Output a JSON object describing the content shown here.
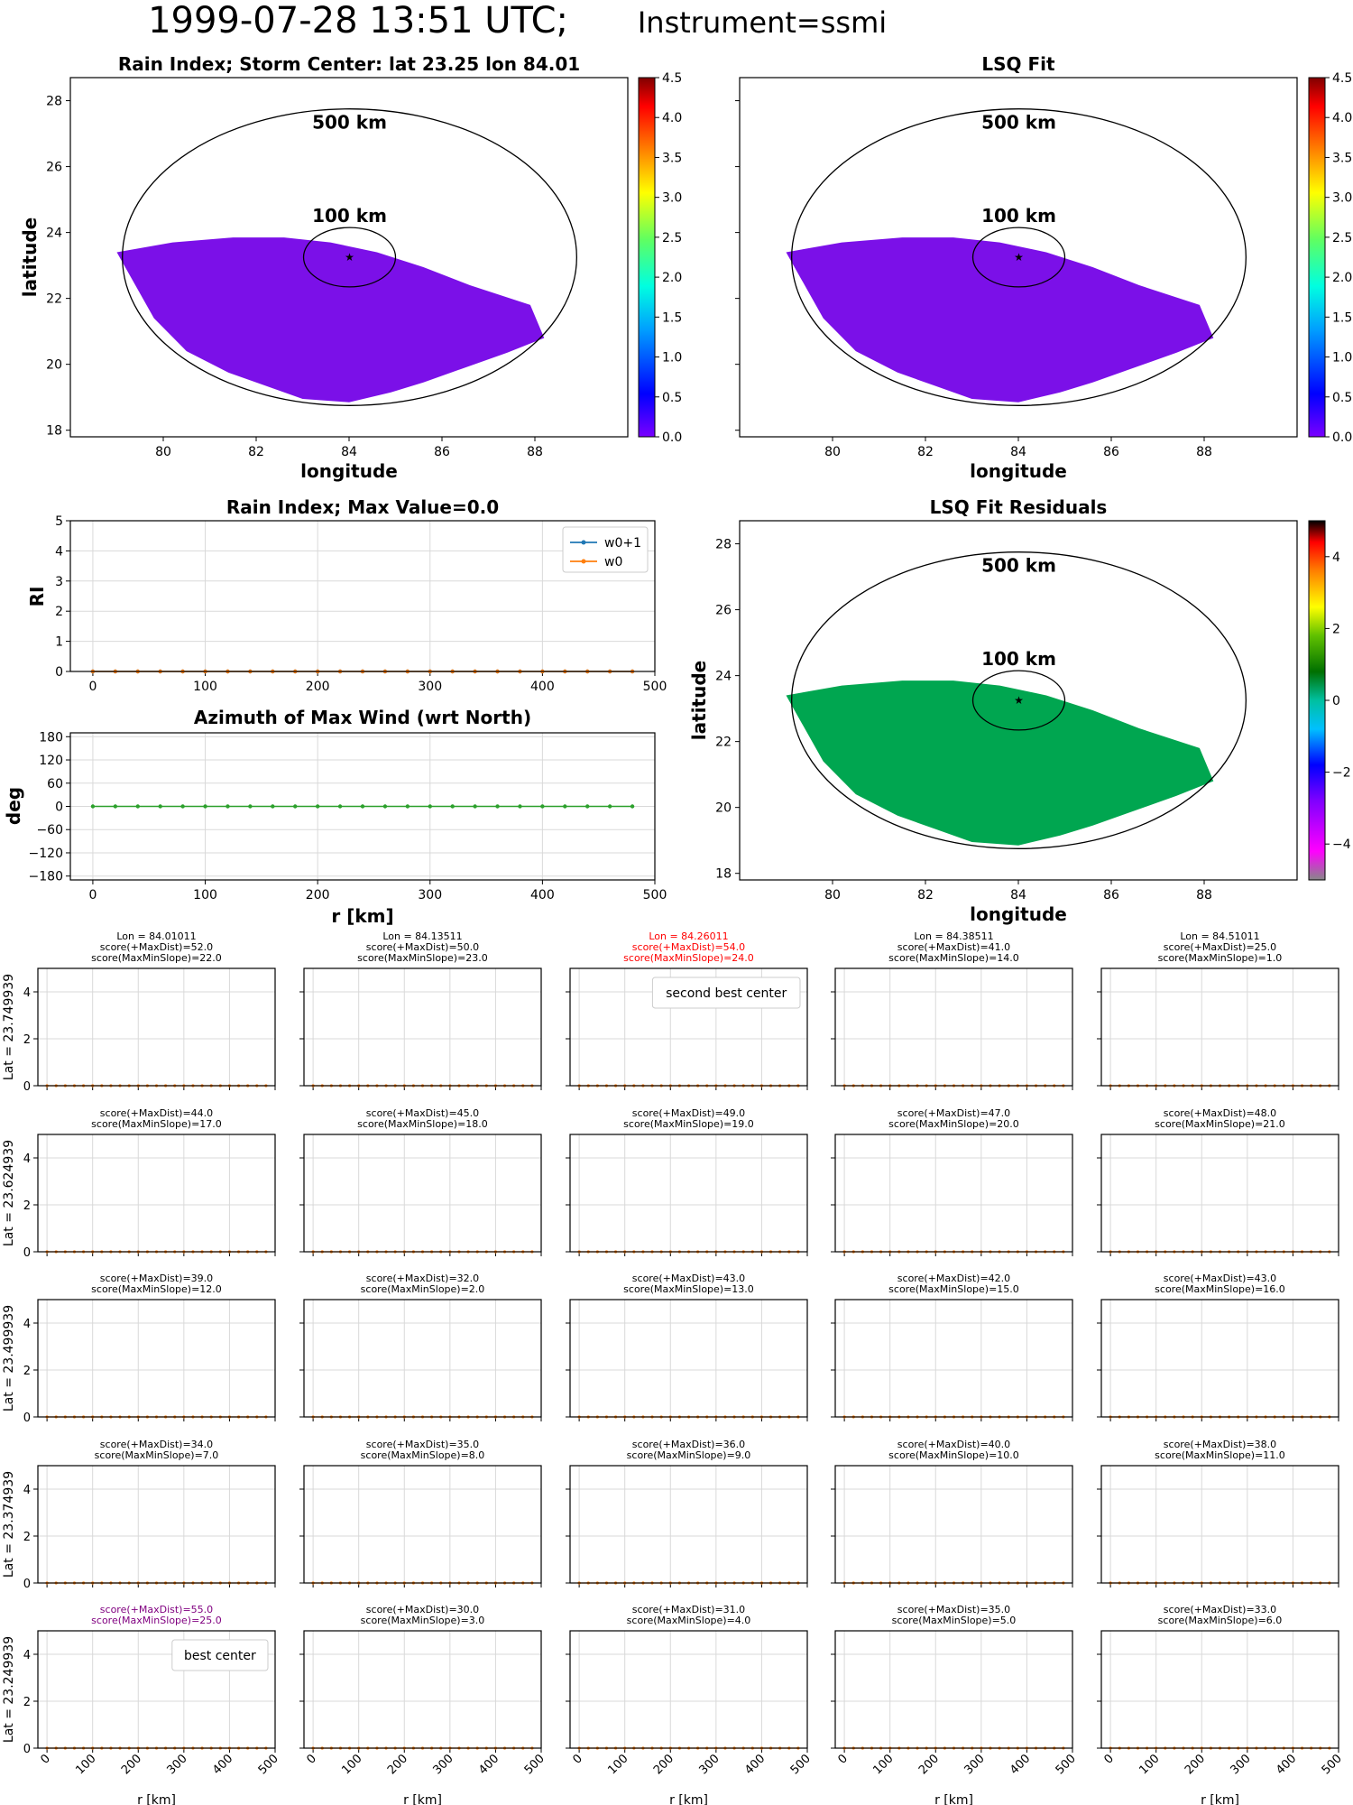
{
  "figure": {
    "title_time": "1999-07-28 13:51 UTC;",
    "title_instrument": "Instrument=ssmi"
  },
  "chart_data": [
    {
      "id": "rain-map",
      "type": "heatmap",
      "title": "Rain Index; Storm Center: lat 23.25 lon 84.01",
      "xlabel": "longitude",
      "ylabel": "latitude",
      "xlim": [
        78,
        90
      ],
      "ylim": [
        17.8,
        28.7
      ],
      "xticks": [
        "80",
        "82",
        "84",
        "86",
        "88"
      ],
      "yticks": [
        "18",
        "20",
        "22",
        "24",
        "26",
        "28"
      ],
      "field_value": 0.0,
      "storm_center": {
        "lat": 23.25,
        "lon": 84.01
      },
      "rings": [
        "500 km",
        "100 km"
      ],
      "colorbar": {
        "min": 0.0,
        "max": 4.5,
        "ticks": [
          "0.0",
          "0.5",
          "1.0",
          "1.5",
          "2.0",
          "2.5",
          "3.0",
          "3.5",
          "4.0",
          "4.5"
        ]
      }
    },
    {
      "id": "lsq-map",
      "type": "heatmap",
      "title": "LSQ Fit",
      "xlabel": "longitude",
      "ylabel": "",
      "xlim": [
        78,
        90
      ],
      "ylim": [
        17.8,
        28.7
      ],
      "xticks": [
        "80",
        "82",
        "84",
        "86",
        "88"
      ],
      "field_value": 0.0,
      "rings": [
        "500 km",
        "100 km"
      ],
      "colorbar": {
        "min": 0.0,
        "max": 4.5,
        "ticks": [
          "0.0",
          "0.5",
          "1.0",
          "1.5",
          "2.0",
          "2.5",
          "3.0",
          "3.5",
          "4.0",
          "4.5"
        ]
      }
    },
    {
      "id": "ri-profile",
      "type": "line",
      "title": "Rain Index; Max Value=0.0",
      "xlabel": "",
      "ylabel": "RI",
      "xlim": [
        -20,
        500
      ],
      "ylim": [
        0,
        5
      ],
      "xticks": [
        "0",
        "100",
        "200",
        "300",
        "400",
        "500"
      ],
      "yticks": [
        "0",
        "1",
        "2",
        "3",
        "4",
        "5"
      ],
      "x": [
        0,
        20,
        40,
        60,
        80,
        100,
        120,
        140,
        160,
        180,
        200,
        220,
        240,
        260,
        280,
        300,
        320,
        340,
        360,
        380,
        400,
        420,
        440,
        460,
        480
      ],
      "series": [
        {
          "name": "w0+1",
          "values": [
            0,
            0,
            0,
            0,
            0,
            0,
            0,
            0,
            0,
            0,
            0,
            0,
            0,
            0,
            0,
            0,
            0,
            0,
            0,
            0,
            0,
            0,
            0,
            0,
            0
          ],
          "color": "#1f77b4"
        },
        {
          "name": "w0",
          "values": [
            0,
            0,
            0,
            0,
            0,
            0,
            0,
            0,
            0,
            0,
            0,
            0,
            0,
            0,
            0,
            0,
            0,
            0,
            0,
            0,
            0,
            0,
            0,
            0,
            0
          ],
          "color": "#ff7f0e"
        }
      ],
      "legend": "top-right"
    },
    {
      "id": "azimuth-profile",
      "type": "line",
      "title": "Azimuth of Max Wind (wrt North)",
      "xlabel": "r [km]",
      "ylabel": "deg",
      "xlim": [
        -20,
        500
      ],
      "ylim": [
        -190,
        190
      ],
      "xticks": [
        "0",
        "100",
        "200",
        "300",
        "400",
        "500"
      ],
      "yticks": [
        "180",
        "120",
        "60",
        "0",
        "−60",
        "−120",
        "−180"
      ],
      "x": [
        0,
        20,
        40,
        60,
        80,
        100,
        120,
        140,
        160,
        180,
        200,
        220,
        240,
        260,
        280,
        300,
        320,
        340,
        360,
        380,
        400,
        420,
        440,
        460,
        480
      ],
      "series": [
        {
          "values": [
            0,
            0,
            0,
            0,
            0,
            0,
            0,
            0,
            0,
            0,
            0,
            0,
            0,
            0,
            0,
            0,
            0,
            0,
            0,
            0,
            0,
            0,
            0,
            0,
            0
          ],
          "color": "#2ca02c"
        }
      ]
    },
    {
      "id": "residual-map",
      "type": "heatmap",
      "title": "LSQ Fit Residuals",
      "xlabel": "longitude",
      "ylabel": "latitude",
      "xlim": [
        78,
        90
      ],
      "ylim": [
        17.8,
        28.7
      ],
      "xticks": [
        "80",
        "82",
        "84",
        "86",
        "88"
      ],
      "yticks": [
        "18",
        "20",
        "22",
        "24",
        "26",
        "28"
      ],
      "field_value": 0.0,
      "rings": [
        "500 km",
        "100 km"
      ],
      "colorbar": {
        "min": -5,
        "max": 5,
        "ticks": [
          "−4",
          "−2",
          "0",
          "2",
          "4"
        ]
      }
    },
    {
      "id": "center-grid",
      "type": "line",
      "xlabel": "r [km]",
      "xlim": [
        -20,
        500
      ],
      "ylim": [
        0,
        5
      ],
      "xticks": [
        "0",
        "100",
        "200",
        "300",
        "400",
        "500"
      ],
      "yticks": [
        "0",
        "2",
        "4"
      ],
      "columns_lon": [
        "Lon = 84.01011",
        "Lon = 84.13511",
        "Lon = 84.26011",
        "Lon = 84.38511",
        "Lon = 84.51011"
      ],
      "rows_lat": [
        "Lat = 23.749939",
        "Lat = 23.624939",
        "Lat = 23.499939",
        "Lat = 23.374939",
        "Lat = 23.249939"
      ],
      "score_maxdist": [
        [
          "score(+MaxDist)=52.0",
          "score(+MaxDist)=50.0",
          "score(+MaxDist)=54.0",
          "score(+MaxDist)=41.0",
          "score(+MaxDist)=25.0"
        ],
        [
          "score(+MaxDist)=44.0",
          "score(+MaxDist)=45.0",
          "score(+MaxDist)=49.0",
          "score(+MaxDist)=47.0",
          "score(+MaxDist)=48.0"
        ],
        [
          "score(+MaxDist)=39.0",
          "score(+MaxDist)=32.0",
          "score(+MaxDist)=43.0",
          "score(+MaxDist)=42.0",
          "score(+MaxDist)=43.0"
        ],
        [
          "score(+MaxDist)=34.0",
          "score(+MaxDist)=35.0",
          "score(+MaxDist)=36.0",
          "score(+MaxDist)=40.0",
          "score(+MaxDist)=38.0"
        ],
        [
          "score(+MaxDist)=55.0",
          "score(+MaxDist)=30.0",
          "score(+MaxDist)=31.0",
          "score(+MaxDist)=35.0",
          "score(+MaxDist)=33.0"
        ]
      ],
      "score_maxminslope": [
        [
          "score(MaxMinSlope)=22.0",
          "score(MaxMinSlope)=23.0",
          "score(MaxMinSlope)=24.0",
          "score(MaxMinSlope)=14.0",
          "score(MaxMinSlope)=1.0"
        ],
        [
          "score(MaxMinSlope)=17.0",
          "score(MaxMinSlope)=18.0",
          "score(MaxMinSlope)=19.0",
          "score(MaxMinSlope)=20.0",
          "score(MaxMinSlope)=21.0"
        ],
        [
          "score(MaxMinSlope)=12.0",
          "score(MaxMinSlope)=2.0",
          "score(MaxMinSlope)=13.0",
          "score(MaxMinSlope)=15.0",
          "score(MaxMinSlope)=16.0"
        ],
        [
          "score(MaxMinSlope)=7.0",
          "score(MaxMinSlope)=8.0",
          "score(MaxMinSlope)=9.0",
          "score(MaxMinSlope)=10.0",
          "score(MaxMinSlope)=11.0"
        ],
        [
          "score(MaxMinSlope)=25.0",
          "score(MaxMinSlope)=3.0",
          "score(MaxMinSlope)=4.0",
          "score(MaxMinSlope)=5.0",
          "score(MaxMinSlope)=6.0"
        ]
      ],
      "highlights": [
        {
          "row": 0,
          "col": 2,
          "label": "second best center",
          "color": "#ff0000"
        },
        {
          "row": 4,
          "col": 0,
          "label": "best center",
          "color": "#800080"
        }
      ],
      "series_values": [
        0,
        0,
        0,
        0,
        0,
        0,
        0,
        0,
        0,
        0,
        0,
        0,
        0,
        0,
        0,
        0,
        0,
        0,
        0,
        0,
        0,
        0,
        0,
        0,
        0
      ],
      "series_color": "#ff7f0e"
    }
  ],
  "colors": {
    "rain_fill": "#7b10e8",
    "residual_fill": "#00a650",
    "grid": "#d9d9d9"
  }
}
